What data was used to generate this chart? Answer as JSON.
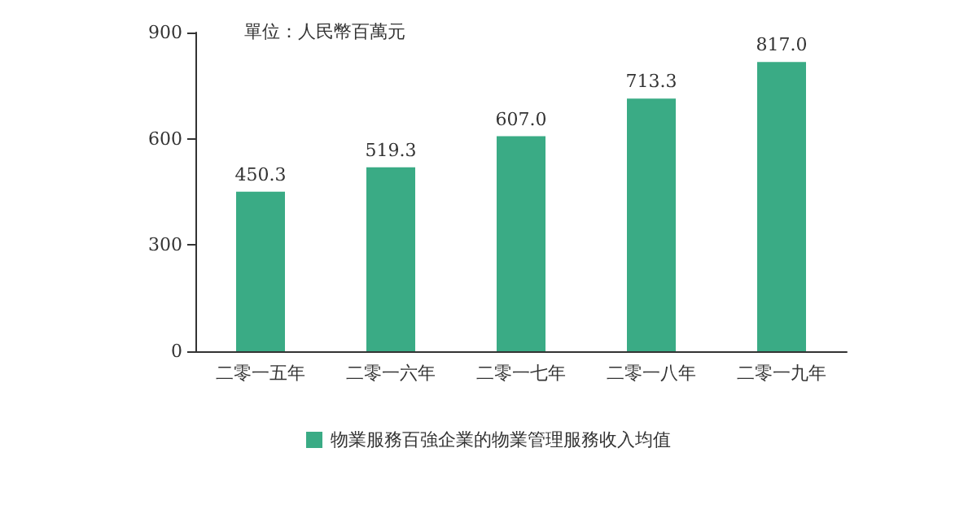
{
  "chart_data": {
    "type": "bar",
    "ylabel": "單位：人民幣百萬元",
    "categories": [
      "二零一五年",
      "二零一六年",
      "二零一七年",
      "二零一八年",
      "二零一九年"
    ],
    "series": [
      {
        "name": "物業服務百強企業的物業管理服務收入均值",
        "color": "#3aab85",
        "values": [
          450.3,
          519.3,
          607.0,
          713.3,
          817.0
        ]
      }
    ],
    "value_labels": [
      "450.3",
      "519.3",
      "607.0",
      "713.3",
      "817.0"
    ],
    "ylim": [
      0,
      900
    ],
    "yticks": [
      0,
      300,
      600,
      900
    ],
    "grid": false,
    "legend": "bottom"
  }
}
